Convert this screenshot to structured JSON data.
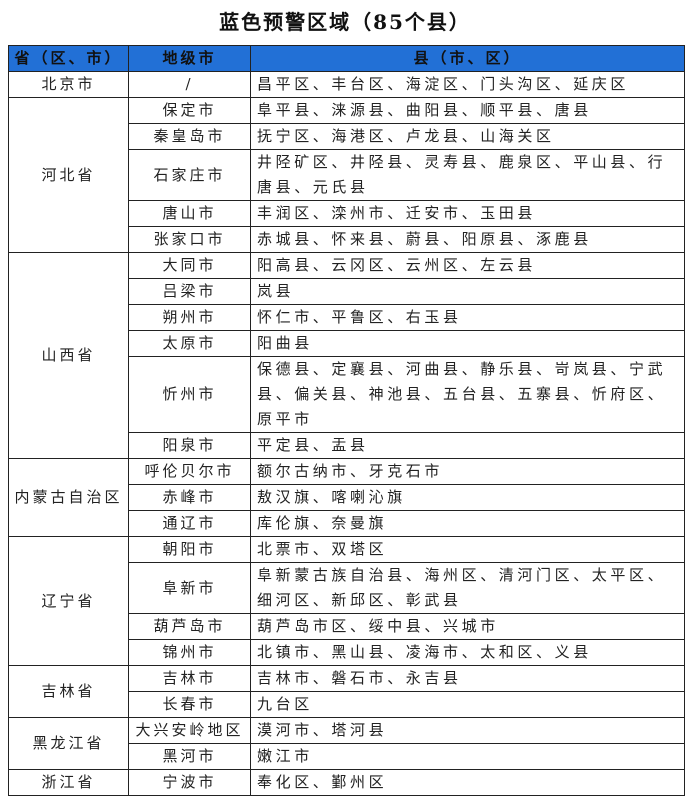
{
  "title": "蓝色预警区域（85个县）",
  "headers": [
    "省（区、市）",
    "地级市",
    "县（市、区）"
  ],
  "header_color": "#2270d6",
  "provinces": [
    {
      "name": "北京市",
      "cities": [
        {
          "name": "/",
          "counties": "昌平区、丰台区、海淀区、门头沟区、延庆区"
        }
      ]
    },
    {
      "name": "河北省",
      "cities": [
        {
          "name": "保定市",
          "counties": "阜平县、涞源县、曲阳县、顺平县、唐县"
        },
        {
          "name": "秦皇岛市",
          "counties": "抚宁区、海港区、卢龙县、山海关区"
        },
        {
          "name": "石家庄市",
          "counties": "井陉矿区、井陉县、灵寿县、鹿泉区、平山县、行唐县、元氏县"
        },
        {
          "name": "唐山市",
          "counties": "丰润区、滦州市、迁安市、玉田县"
        },
        {
          "name": "张家口市",
          "counties": "赤城县、怀来县、蔚县、阳原县、涿鹿县"
        }
      ]
    },
    {
      "name": "山西省",
      "cities": [
        {
          "name": "大同市",
          "counties": "阳高县、云冈区、云州区、左云县"
        },
        {
          "name": "吕梁市",
          "counties": "岚县"
        },
        {
          "name": "朔州市",
          "counties": "怀仁市、平鲁区、右玉县"
        },
        {
          "name": "太原市",
          "counties": "阳曲县"
        },
        {
          "name": "忻州市",
          "counties": "保德县、定襄县、河曲县、静乐县、岢岚县、宁武县、偏关县、神池县、五台县、五寨县、忻府区、原平市"
        },
        {
          "name": "阳泉市",
          "counties": "平定县、盂县"
        }
      ]
    },
    {
      "name": "内蒙古自治区",
      "cities": [
        {
          "name": "呼伦贝尔市",
          "counties": "额尔古纳市、牙克石市"
        },
        {
          "name": "赤峰市",
          "counties": "敖汉旗、喀喇沁旗"
        },
        {
          "name": "通辽市",
          "counties": "库伦旗、奈曼旗"
        }
      ]
    },
    {
      "name": "辽宁省",
      "cities": [
        {
          "name": "朝阳市",
          "counties": "北票市、双塔区"
        },
        {
          "name": "阜新市",
          "counties": "阜新蒙古族自治县、海州区、清河门区、太平区、细河区、新邱区、彰武县"
        },
        {
          "name": "葫芦岛市",
          "counties": "葫芦岛市区、绥中县、兴城市"
        },
        {
          "name": "锦州市",
          "counties": "北镇市、黑山县、凌海市、太和区、义县"
        }
      ]
    },
    {
      "name": "吉林省",
      "cities": [
        {
          "name": "吉林市",
          "counties": "吉林市、磐石市、永吉县"
        },
        {
          "name": "长春市",
          "counties": "九台区"
        }
      ]
    },
    {
      "name": "黑龙江省",
      "cities": [
        {
          "name": "大兴安岭地区",
          "counties": "漠河市、塔河县"
        },
        {
          "name": "黑河市",
          "counties": "嫩江市"
        }
      ]
    },
    {
      "name": "浙江省",
      "cities": [
        {
          "name": "宁波市",
          "counties": "奉化区、鄞州区"
        }
      ]
    }
  ]
}
